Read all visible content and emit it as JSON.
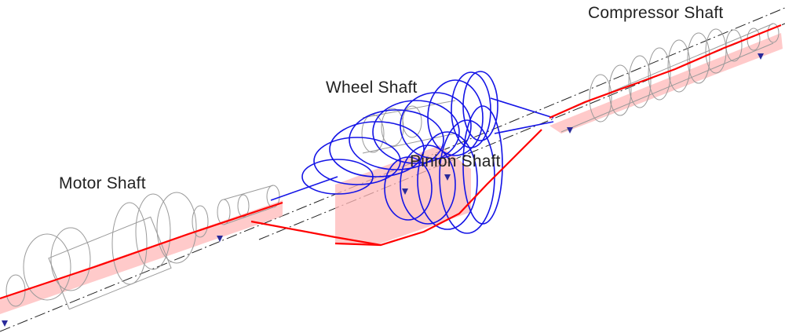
{
  "labels": {
    "compressor_shaft": "Compressor Shaft",
    "wheel_shaft": "Wheel Shaft",
    "pinion_shaft": "Pinion Shaft",
    "motor_shaft": "Motor Shaft"
  },
  "colors": {
    "mode_shape": "#ff0000",
    "mode_fill": "#ffb8b8",
    "wheel_rings": "#1414e6",
    "wireframe": "#9a9a9a",
    "centerline": "#222222",
    "bearing": "#2a2a9a"
  }
}
